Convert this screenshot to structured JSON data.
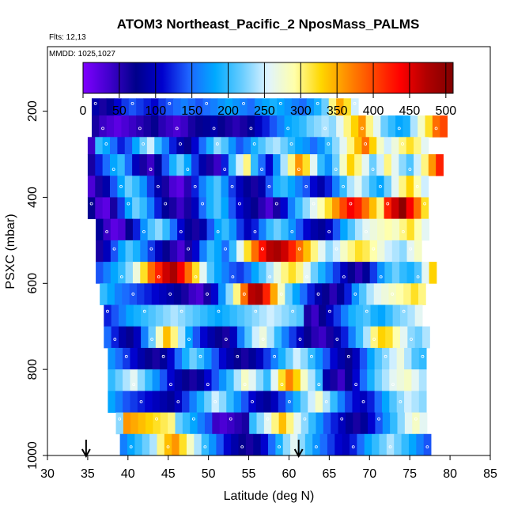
{
  "chart_data": {
    "type": "heatmap",
    "title": "ATOM3 Northeast_Pacific_2 NposMass_PALMS",
    "annotations": {
      "flights": "Flts: 12,13",
      "dates": "MMDD: 1025,1027"
    },
    "xlabel": "Latitude (deg N)",
    "ylabel": "PSXC (mbar)",
    "xlim": [
      30,
      85
    ],
    "ylim": [
      1000,
      50
    ],
    "x_reversed": false,
    "y_reversed": true,
    "x_ticks": [
      "30",
      "35",
      "40",
      "45",
      "50",
      "55",
      "60",
      "65",
      "70",
      "75",
      "80",
      "85"
    ],
    "y_ticks": [
      "200",
      "400",
      "600",
      "800",
      "1000"
    ],
    "colorbar": {
      "range": [
        0,
        510
      ],
      "ticks": [
        "0",
        "50",
        "100",
        "150",
        "200",
        "250",
        "300",
        "350",
        "400",
        "450",
        "500"
      ],
      "colors": [
        "#7f00ff",
        "#4000cc",
        "#00008b",
        "#0000cd",
        "#1e64ff",
        "#00aaff",
        "#66ccff",
        "#e0f4ff",
        "#ffffaa",
        "#ffd700",
        "#ff8c00",
        "#ff4500",
        "#ff0000",
        "#b00000",
        "#800000"
      ]
    },
    "arrows_latitude": [
      34.8,
      61.2
    ],
    "grid": false,
    "rows": [
      {
        "p_top": 170,
        "p_bot": 210,
        "lat_start": 35.5,
        "values": [
          90,
          60,
          80,
          110,
          130,
          140,
          130,
          120,
          110,
          130,
          140,
          150,
          160,
          150,
          140,
          150,
          160,
          170,
          180,
          170,
          160,
          150,
          170,
          180,
          190,
          180,
          170,
          160,
          150,
          170,
          190,
          220,
          300,
          350,
          320,
          250
        ]
      },
      {
        "p_top": 210,
        "p_bot": 260,
        "lat_start": 35.5,
        "values": [
          60,
          40,
          30,
          20,
          30,
          40,
          50,
          60,
          70,
          50,
          40,
          30,
          40,
          60,
          70,
          80,
          90,
          70,
          60,
          50,
          60,
          80,
          100,
          120,
          140,
          160,
          180,
          190,
          200,
          220,
          230,
          240,
          230,
          260,
          300,
          330,
          360,
          300,
          260,
          220,
          200,
          180,
          190,
          240,
          280,
          320,
          380,
          400
        ]
      },
      {
        "p_top": 260,
        "p_bot": 300,
        "lat_start": 35.0,
        "values": [
          40,
          200,
          180,
          150,
          120,
          140,
          180,
          220,
          250,
          200,
          160,
          120,
          90,
          70,
          110,
          150,
          190,
          230,
          210,
          170,
          140,
          160,
          190,
          210,
          230,
          240,
          220,
          200,
          180,
          170,
          150,
          170,
          200,
          230,
          260,
          300,
          340,
          380,
          330,
          280,
          250,
          270,
          300,
          320,
          300,
          260
        ]
      },
      {
        "p_top": 300,
        "p_bot": 350,
        "lat_start": 35.0,
        "values": [
          60,
          120,
          150,
          180,
          200,
          150,
          100,
          60,
          40,
          80,
          140,
          190,
          220,
          180,
          130,
          90,
          60,
          40,
          120,
          200,
          250,
          300,
          200,
          150,
          110,
          170,
          240,
          300,
          360,
          320,
          260,
          200,
          170,
          220,
          280,
          330,
          300,
          260,
          220,
          250,
          300,
          260,
          230,
          210,
          250,
          300,
          360,
          420
        ]
      },
      {
        "p_top": 350,
        "p_bot": 400,
        "lat_start": 35.0,
        "values": [
          30,
          60,
          90,
          140,
          180,
          220,
          200,
          170,
          130,
          90,
          60,
          30,
          20,
          50,
          120,
          160,
          190,
          210,
          170,
          130,
          100,
          80,
          60,
          90,
          140,
          190,
          200,
          180,
          160,
          140,
          110,
          90,
          120,
          160,
          200,
          240,
          260,
          230,
          200,
          180,
          220,
          260,
          300,
          330,
          290,
          250
        ]
      },
      {
        "p_top": 400,
        "p_bot": 450,
        "lat_start": 35.0,
        "values": [
          70,
          30,
          20,
          60,
          130,
          180,
          220,
          200,
          160,
          120,
          80,
          60,
          40,
          60,
          100,
          150,
          190,
          210,
          180,
          140,
          110,
          90,
          70,
          50,
          30,
          60,
          110,
          160,
          200,
          230,
          260,
          290,
          320,
          360,
          400,
          440,
          420,
          380,
          340,
          300,
          420,
          460,
          500,
          440,
          380,
          320
        ]
      },
      {
        "p_top": 450,
        "p_bot": 500,
        "lat_start": 36.0,
        "values": [
          80,
          40,
          20,
          30,
          70,
          120,
          170,
          210,
          230,
          200,
          150,
          110,
          80,
          60,
          90,
          140,
          180,
          200,
          170,
          130,
          100,
          120,
          160,
          200,
          220,
          200,
          170,
          140,
          110,
          90,
          80,
          100,
          140,
          180,
          210,
          240,
          260,
          270,
          280,
          290,
          280,
          300,
          320,
          290,
          260
        ]
      },
      {
        "p_top": 500,
        "p_bot": 550,
        "lat_start": 36.0,
        "values": [
          60,
          100,
          140,
          180,
          210,
          190,
          160,
          130,
          100,
          70,
          50,
          30,
          60,
          110,
          160,
          200,
          180,
          150,
          200,
          260,
          320,
          380,
          430,
          470,
          480,
          460,
          420,
          380,
          340,
          300,
          260,
          230,
          250,
          280,
          300,
          320,
          310,
          290,
          270,
          250,
          240,
          230,
          260,
          280
        ]
      },
      {
        "p_top": 550,
        "p_bot": 600,
        "lat_start": 36.0,
        "values": [
          140,
          160,
          180,
          200,
          230,
          270,
          320,
          380,
          420,
          460,
          480,
          440,
          380,
          320,
          260,
          210,
          180,
          160,
          140,
          130,
          150,
          180,
          210,
          240,
          270,
          300,
          320,
          300,
          260,
          220,
          190,
          160,
          130,
          100,
          70,
          50,
          80,
          130,
          170,
          200,
          220,
          200,
          190,
          210,
          260,
          330
        ]
      },
      {
        "p_top": 600,
        "p_bot": 650,
        "lat_start": 36.5,
        "values": [
          200,
          180,
          160,
          150,
          140,
          130,
          120,
          110,
          100,
          90,
          80,
          60,
          40,
          30,
          60,
          110,
          170,
          230,
          300,
          380,
          470,
          480,
          420,
          350,
          280,
          220,
          180,
          150,
          120,
          90,
          70,
          50,
          80,
          120,
          170,
          210,
          240,
          260,
          270,
          280,
          290,
          300,
          320,
          300
        ]
      },
      {
        "p_top": 650,
        "p_bot": 700,
        "lat_start": 37.0,
        "values": [
          120,
          140,
          160,
          180,
          190,
          200,
          210,
          220,
          230,
          240,
          230,
          220,
          210,
          200,
          190,
          180,
          190,
          200,
          210,
          220,
          230,
          240,
          250,
          240,
          230,
          220,
          210,
          60,
          40,
          70,
          100,
          130,
          160,
          190,
          200,
          210,
          190,
          180,
          200,
          220,
          230,
          240,
          260
        ]
      },
      {
        "p_top": 700,
        "p_bot": 750,
        "lat_start": 37.0,
        "values": [
          150,
          120,
          90,
          70,
          100,
          160,
          220,
          280,
          340,
          300,
          240,
          180,
          140,
          110,
          90,
          70,
          60,
          100,
          160,
          210,
          250,
          270,
          240,
          200,
          160,
          130,
          100,
          70,
          50,
          40,
          60,
          90,
          120,
          160,
          200,
          240,
          300,
          330,
          320,
          290,
          260,
          230,
          220,
          240
        ]
      },
      {
        "p_top": 750,
        "p_bot": 800,
        "lat_start": 37.5,
        "values": [
          170,
          150,
          130,
          110,
          90,
          70,
          60,
          80,
          110,
          150,
          190,
          220,
          200,
          170,
          140,
          110,
          90,
          70,
          60,
          80,
          100,
          130,
          160,
          190,
          220,
          250,
          230,
          200,
          170,
          140,
          110,
          90,
          70,
          100,
          140,
          180,
          210,
          230,
          250,
          270,
          240,
          210,
          200
        ]
      },
      {
        "p_top": 800,
        "p_bot": 850,
        "lat_start": 37.5,
        "values": [
          200,
          220,
          240,
          260,
          230,
          200,
          170,
          140,
          110,
          90,
          70,
          60,
          80,
          110,
          140,
          170,
          200,
          240,
          280,
          260,
          230,
          200,
          260,
          320,
          370,
          330,
          280,
          240,
          200,
          90,
          60,
          40,
          70,
          110,
          150,
          190,
          220,
          240,
          260,
          270,
          280,
          260,
          240
        ]
      },
      {
        "p_top": 850,
        "p_bot": 900,
        "lat_start": 37.5,
        "values": [
          180,
          160,
          140,
          130,
          120,
          110,
          100,
          90,
          80,
          100,
          130,
          160,
          190,
          220,
          250,
          230,
          200,
          170,
          140,
          110,
          90,
          80,
          100,
          130,
          160,
          190,
          220,
          250,
          280,
          240,
          200,
          160,
          130,
          110,
          100,
          120,
          150,
          180,
          210,
          230,
          250,
          240,
          230
        ]
      },
      {
        "p_top": 900,
        "p_bot": 950,
        "lat_start": 38.5,
        "values": [
          230,
          360,
          350,
          340,
          330,
          320,
          310,
          300,
          220,
          200,
          180,
          160,
          140,
          40,
          30,
          40,
          50,
          60,
          200,
          230,
          260,
          300,
          340,
          300,
          260,
          230,
          200,
          170,
          140,
          120,
          100,
          80,
          60,
          80,
          110,
          140,
          170,
          200,
          230,
          260,
          280,
          260
        ]
      },
      {
        "p_top": 950,
        "p_bot": 1000,
        "lat_start": 39.0,
        "values": [
          160,
          180,
          200,
          220,
          240,
          300,
          340,
          360,
          320,
          280,
          240,
          200,
          170,
          140,
          110,
          90,
          70,
          60,
          80,
          110,
          150,
          190,
          230,
          260,
          230,
          200,
          170,
          150,
          130,
          110,
          100,
          120,
          150,
          180,
          200,
          220,
          240,
          220,
          200,
          180,
          160,
          140
        ]
      }
    ]
  }
}
